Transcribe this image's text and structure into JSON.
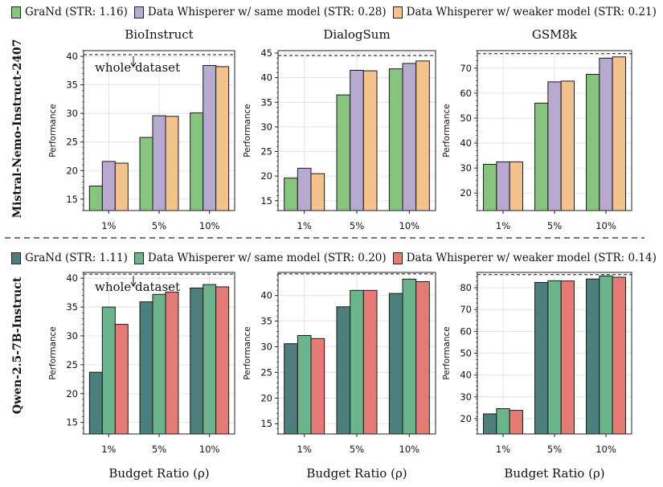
{
  "divider_style": "dashed",
  "groups": [
    {
      "model_label": "Mistral-Nemo-Instruct-2407",
      "legend": [
        {
          "label": "GraNd (STR: 1.16)",
          "color": "#86c47f"
        },
        {
          "label": "Data Whisperer w/ same model (STR: 0.28)",
          "color": "#b7a9cf"
        },
        {
          "label": "Data Whisperer w/ weaker model (STR: 0.21)",
          "color": "#f4c38d"
        }
      ]
    },
    {
      "model_label": "Qwen-2.5-7B-Instruct",
      "legend": [
        {
          "label": "GraNd (STR: 1.11)",
          "color": "#4c7f7b"
        },
        {
          "label": "Data Whisperer w/ same model (STR: 0.20)",
          "color": "#6cb48b"
        },
        {
          "label": "Data Whisperer w/ weaker model (STR: 0.14)",
          "color": "#e57b77"
        }
      ]
    }
  ],
  "chart_data": [
    {
      "type": "bar",
      "group": 0,
      "title": "BioInstruct",
      "xlabel": "",
      "ylabel": "Performance",
      "categories": [
        "1%",
        "5%",
        "10%"
      ],
      "ylim": [
        13,
        41
      ],
      "yticks": [
        15,
        20,
        25,
        30,
        35,
        40
      ],
      "series": [
        {
          "name": "GraNd (STR: 1.16)",
          "values": [
            17.3,
            25.8,
            30.1
          ]
        },
        {
          "name": "Data Whisperer w/ same model (STR: 0.28)",
          "values": [
            21.6,
            29.6,
            38.4
          ]
        },
        {
          "name": "Data Whisperer w/ weaker model (STR: 0.21)",
          "values": [
            21.3,
            29.5,
            38.2
          ]
        }
      ],
      "reference_line": {
        "value": 40.3,
        "label": "whole dataset"
      }
    },
    {
      "type": "bar",
      "group": 0,
      "title": "DialogSum",
      "xlabel": "",
      "ylabel": "Performance",
      "categories": [
        "1%",
        "5%",
        "10%"
      ],
      "ylim": [
        13,
        45.5
      ],
      "yticks": [
        15,
        20,
        25,
        30,
        35,
        40,
        45
      ],
      "series": [
        {
          "name": "GraNd (STR: 1.16)",
          "values": [
            19.6,
            36.5,
            41.8
          ]
        },
        {
          "name": "Data Whisperer w/ same model (STR: 0.28)",
          "values": [
            21.6,
            41.5,
            42.9
          ]
        },
        {
          "name": "Data Whisperer w/ weaker model (STR: 0.21)",
          "values": [
            20.5,
            41.4,
            43.4
          ]
        }
      ],
      "reference_line": {
        "value": 44.5,
        "label": ""
      }
    },
    {
      "type": "bar",
      "group": 0,
      "title": "GSM8k",
      "xlabel": "",
      "ylabel": "Performance",
      "categories": [
        "1%",
        "5%",
        "10%"
      ],
      "ylim": [
        13,
        77
      ],
      "yticks": [
        20,
        30,
        40,
        50,
        60,
        70
      ],
      "series": [
        {
          "name": "GraNd (STR: 1.16)",
          "values": [
            31.5,
            56.0,
            67.5
          ]
        },
        {
          "name": "Data Whisperer w/ same model (STR: 0.28)",
          "values": [
            32.5,
            64.5,
            74.0
          ]
        },
        {
          "name": "Data Whisperer w/ weaker model (STR: 0.21)",
          "values": [
            32.5,
            64.8,
            74.5
          ]
        }
      ],
      "reference_line": {
        "value": 75.8,
        "label": ""
      }
    },
    {
      "type": "bar",
      "group": 1,
      "title": "",
      "xlabel": "Budget Ratio (ρ)",
      "ylabel": "Performance",
      "categories": [
        "1%",
        "5%",
        "10%"
      ],
      "ylim": [
        13,
        41
      ],
      "yticks": [
        15,
        20,
        25,
        30,
        35,
        40
      ],
      "series": [
        {
          "name": "GraNd (STR: 1.11)",
          "values": [
            23.7,
            35.9,
            38.3
          ]
        },
        {
          "name": "Data Whisperer w/ same model (STR: 0.20)",
          "values": [
            35.0,
            37.2,
            38.9
          ]
        },
        {
          "name": "Data Whisperer w/ weaker model (STR: 0.14)",
          "values": [
            32.0,
            37.6,
            38.5
          ]
        }
      ],
      "reference_line": {
        "value": 40.7,
        "label": "whole dataset"
      }
    },
    {
      "type": "bar",
      "group": 1,
      "title": "",
      "xlabel": "Budget Ratio (ρ)",
      "ylabel": "Performance",
      "categories": [
        "1%",
        "5%",
        "10%"
      ],
      "ylim": [
        13,
        44.5
      ],
      "yticks": [
        15,
        20,
        25,
        30,
        35,
        40
      ],
      "series": [
        {
          "name": "GraNd (STR: 1.11)",
          "values": [
            30.6,
            37.8,
            40.4
          ]
        },
        {
          "name": "Data Whisperer w/ same model (STR: 0.20)",
          "values": [
            32.2,
            41.0,
            43.2
          ]
        },
        {
          "name": "Data Whisperer w/ weaker model (STR: 0.14)",
          "values": [
            31.6,
            41.0,
            42.7
          ]
        }
      ],
      "reference_line": {
        "value": 44.2,
        "label": ""
      }
    },
    {
      "type": "bar",
      "group": 1,
      "title": "",
      "xlabel": "Budget Ratio (ρ)",
      "ylabel": "Performance",
      "categories": [
        "1%",
        "5%",
        "10%"
      ],
      "ylim": [
        13,
        87
      ],
      "yticks": [
        20,
        30,
        40,
        50,
        60,
        70,
        80
      ],
      "series": [
        {
          "name": "GraNd (STR: 1.11)",
          "values": [
            22.2,
            82.4,
            84.0
          ]
        },
        {
          "name": "Data Whisperer w/ same model (STR: 0.20)",
          "values": [
            24.6,
            83.2,
            85.4
          ]
        },
        {
          "name": "Data Whisperer w/ weaker model (STR: 0.14)",
          "values": [
            23.8,
            83.1,
            84.8
          ]
        }
      ],
      "reference_line": {
        "value": 86.0,
        "label": ""
      }
    }
  ]
}
